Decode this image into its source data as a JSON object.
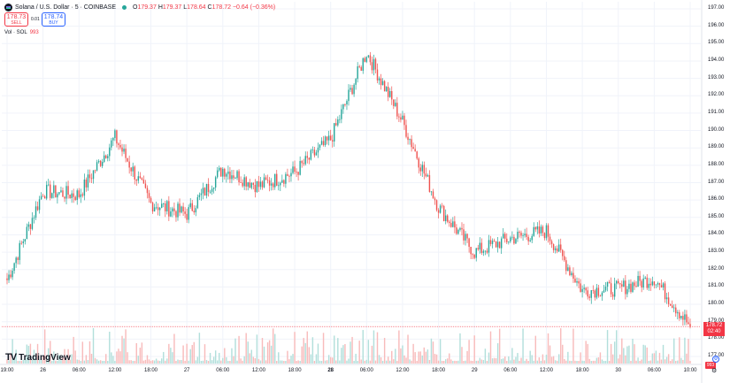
{
  "header": {
    "symbol": "Solana / U.S. Dollar · 5 · COINBASE",
    "o_label": "O",
    "o_value": "179.37",
    "h_label": "H",
    "h_value": "179.37",
    "l_label": "L",
    "l_value": "178.64",
    "c_label": "C",
    "c_value": "178.72",
    "change": "−0.64 (−0.36%)"
  },
  "trade": {
    "sell_price": "178.73",
    "sell_label": "SELL",
    "spread": "0.01",
    "buy_price": "178.74",
    "buy_label": "BUY"
  },
  "volume_legend": {
    "label": "Vol · SOL",
    "value": "993"
  },
  "price_axis": [
    "197.00",
    "196.00",
    "195.00",
    "194.00",
    "193.00",
    "192.00",
    "191.00",
    "190.00",
    "189.00",
    "188.00",
    "187.00",
    "186.00",
    "185.00",
    "184.00",
    "183.00",
    "182.00",
    "181.00",
    "180.00",
    "179.00",
    "178.00",
    "177.00"
  ],
  "time_axis": [
    {
      "label": "19:00",
      "bold": false
    },
    {
      "label": "26",
      "bold": false
    },
    {
      "label": "06:00",
      "bold": false
    },
    {
      "label": "12:00",
      "bold": false
    },
    {
      "label": "18:00",
      "bold": false
    },
    {
      "label": "27",
      "bold": false
    },
    {
      "label": "06:00",
      "bold": false
    },
    {
      "label": "12:00",
      "bold": false
    },
    {
      "label": "18:00",
      "bold": false
    },
    {
      "label": "28",
      "bold": true
    },
    {
      "label": "06:00",
      "bold": false
    },
    {
      "label": "12:00",
      "bold": false
    },
    {
      "label": "18:00",
      "bold": false
    },
    {
      "label": "29",
      "bold": false
    },
    {
      "label": "06:00",
      "bold": false
    },
    {
      "label": "12:00",
      "bold": false
    },
    {
      "label": "18:00",
      "bold": false
    },
    {
      "label": "30",
      "bold": false
    },
    {
      "label": "06:00",
      "bold": false
    },
    {
      "label": "10:00",
      "bold": false
    }
  ],
  "last_price": {
    "value": "178.72",
    "countdown": "02:40"
  },
  "volume_tag": "993",
  "brand": "TradingView",
  "colors": {
    "up": "#26a69a",
    "down": "#ef5350",
    "up_vol": "#b2dfdb",
    "down_vol": "#f8bbbb",
    "last_line": "#f23645"
  },
  "chart_data": {
    "type": "candlestick",
    "ylim": [
      177,
      197
    ],
    "key_closes": [
      {
        "t": "19:00",
        "close": 181.4
      },
      {
        "t": "26",
        "close": 186.5
      },
      {
        "t": "06:00",
        "close": 186.3
      },
      {
        "t": "12:00",
        "close": 189.6
      },
      {
        "t": "18:00",
        "close": 185.8
      },
      {
        "t": "27",
        "close": 185.2
      },
      {
        "t": "06:00",
        "close": 187.8
      },
      {
        "t": "12:00",
        "close": 186.8
      },
      {
        "t": "18:00",
        "close": 187.6
      },
      {
        "t": "28",
        "close": 189.5
      },
      {
        "t": "06:00",
        "close": 194.5
      },
      {
        "t": "12:00",
        "close": 190.5
      },
      {
        "t": "18:00",
        "close": 185.6
      },
      {
        "t": "29",
        "close": 183.0
      },
      {
        "t": "06:00",
        "close": 183.8
      },
      {
        "t": "12:00",
        "close": 184.2
      },
      {
        "t": "18:00",
        "close": 180.8
      },
      {
        "t": "30",
        "close": 180.9
      },
      {
        "t": "06:00",
        "close": 181.5
      },
      {
        "t": "10:00",
        "close": 178.72
      }
    ]
  }
}
